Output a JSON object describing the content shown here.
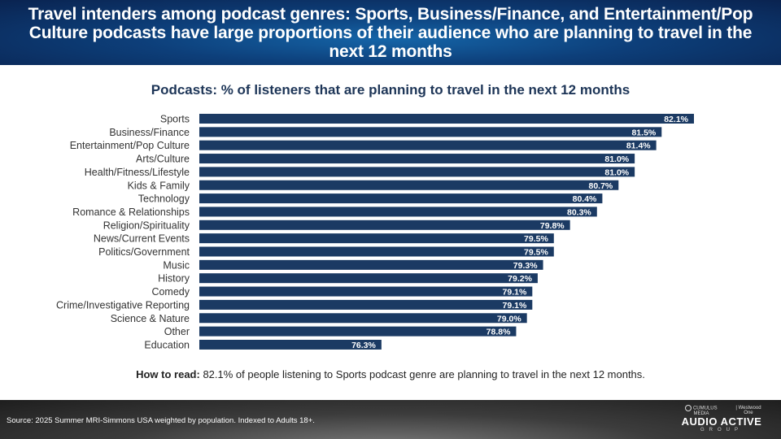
{
  "header": {
    "title": "Travel intenders among podcast genres: Sports, Business/Finance, and Entertainment/Pop Culture podcasts have large proportions of their audience who are planning to travel in the next 12 months"
  },
  "chart_data": {
    "type": "bar",
    "orientation": "horizontal",
    "title": "Podcasts: % of listeners that are planning to travel in the next 12 months",
    "xlabel": "",
    "ylabel": "",
    "xlim": [
      72.92,
      82.1
    ],
    "grid": false,
    "legend": "none",
    "bar_color": "#1b3a63",
    "label_color": "#ffffff",
    "categories": [
      "Sports",
      "Business/Finance",
      "Entertainment/Pop Culture",
      "Arts/Culture",
      "Health/Fitness/Lifestyle",
      "Kids & Family",
      "Technology",
      "Romance & Relationships",
      "Religion/Spirituality",
      "News/Current Events",
      "Politics/Government",
      "Music",
      "History",
      "Comedy",
      "Crime/Investigative Reporting",
      "Science & Nature",
      "Other",
      "Education"
    ],
    "values": [
      82.1,
      81.5,
      81.4,
      81.0,
      81.0,
      80.7,
      80.4,
      80.3,
      79.8,
      79.5,
      79.5,
      79.3,
      79.2,
      79.1,
      79.1,
      79.0,
      78.8,
      76.3
    ],
    "value_labels": [
      "82.1%",
      "81.5%",
      "81.4%",
      "81.0%",
      "81.0%",
      "80.7%",
      "80.4%",
      "80.3%",
      "79.8%",
      "79.5%",
      "79.5%",
      "79.3%",
      "79.2%",
      "79.1%",
      "79.1%",
      "79.0%",
      "78.8%",
      "76.3%"
    ]
  },
  "how_to_read": {
    "label": "How to read:",
    "text": " 82.1% of people listening to Sports podcast genre are planning to travel in the next 12 months."
  },
  "footer": {
    "source": "Source: 2025 Summer MRI-Simmons USA weighted by population.  Indexed to Adults 18+.",
    "logo_top_left": "CUMULUS MEDIA",
    "logo_top_right": "Westwood One",
    "logo_main": "AUDIO ACTIVE",
    "logo_sub": "GROUP"
  }
}
